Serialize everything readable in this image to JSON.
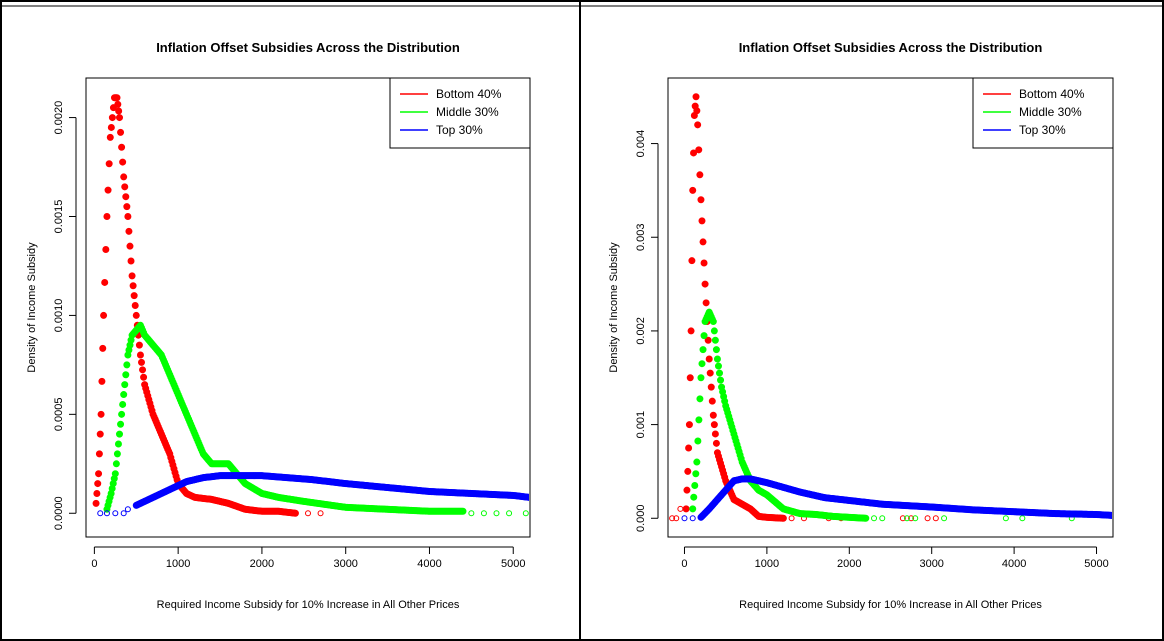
{
  "chart_data": [
    {
      "type": "scatter",
      "title": "Inflation Offset Subsidies Across the Distribution",
      "xlabel": "Required Income Subsidy for 10% Increase in All Other Prices",
      "ylabel": "Density of Income Subsidy",
      "xlim": [
        -100,
        5200
      ],
      "ylim": [
        -0.00012,
        0.0022
      ],
      "xticks": [
        0,
        1000,
        2000,
        3000,
        4000,
        5000
      ],
      "xtick_labels": [
        "0",
        "1000",
        "2000",
        "3000",
        "4000",
        "5000"
      ],
      "yticks": [
        0,
        0.0005,
        0.001,
        0.0015,
        0.002
      ],
      "ytick_labels": [
        "0.0000",
        "0.0005",
        "0.0010",
        "0.0015",
        "0.0020"
      ],
      "grid": false,
      "legend_position": "top-right",
      "series": [
        {
          "name": "Bottom 40%",
          "color": "#ff0000",
          "points": [
            [
              20,
              5e-05
            ],
            [
              50,
              0.0002
            ],
            [
              80,
              0.0005
            ],
            [
              110,
              0.001
            ],
            [
              150,
              0.0015
            ],
            [
              190,
              0.0019
            ],
            [
              240,
              0.0021
            ],
            [
              270,
              0.0021
            ],
            [
              300,
              0.002
            ],
            [
              350,
              0.0017
            ],
            [
              400,
              0.0015
            ],
            [
              450,
              0.0012
            ],
            [
              500,
              0.001
            ],
            [
              550,
              0.0008
            ],
            [
              600,
              0.00065
            ],
            [
              700,
              0.0005
            ],
            [
              800,
              0.0004
            ],
            [
              900,
              0.0003
            ],
            [
              1000,
              0.00015
            ],
            [
              1100,
              0.0001
            ],
            [
              1200,
              8e-05
            ],
            [
              1400,
              7e-05
            ],
            [
              1600,
              5e-05
            ],
            [
              1800,
              2e-05
            ],
            [
              2000,
              1e-05
            ],
            [
              2200,
              1e-05
            ],
            [
              2400,
              0.0
            ]
          ],
          "outliers": [
            [
              2550,
              0.0
            ],
            [
              2700,
              0.0
            ]
          ]
        },
        {
          "name": "Middle 30%",
          "color": "#00ff00",
          "points": [
            [
              150,
              2e-05
            ],
            [
              200,
              0.0001
            ],
            [
              250,
              0.0002
            ],
            [
              300,
              0.0004
            ],
            [
              350,
              0.0006
            ],
            [
              400,
              0.0008
            ],
            [
              450,
              0.0009
            ],
            [
              550,
              0.00095
            ],
            [
              600,
              0.0009
            ],
            [
              700,
              0.00085
            ],
            [
              800,
              0.0008
            ],
            [
              900,
              0.0007
            ],
            [
              1000,
              0.0006
            ],
            [
              1100,
              0.0005
            ],
            [
              1200,
              0.0004
            ],
            [
              1300,
              0.0003
            ],
            [
              1400,
              0.00025
            ],
            [
              1500,
              0.00025
            ],
            [
              1600,
              0.00025
            ],
            [
              1700,
              0.0002
            ],
            [
              1800,
              0.00015
            ],
            [
              2000,
              0.0001
            ],
            [
              2200,
              8e-05
            ],
            [
              2500,
              6e-05
            ],
            [
              3000,
              3e-05
            ],
            [
              3500,
              2e-05
            ],
            [
              4000,
              1e-05
            ],
            [
              4400,
              1e-05
            ]
          ],
          "outliers": [
            [
              4500,
              0.0
            ],
            [
              4650,
              0.0
            ],
            [
              4800,
              0.0
            ],
            [
              4950,
              0.0
            ],
            [
              5150,
              0.0
            ]
          ]
        },
        {
          "name": "Top 30%",
          "color": "#0000ff",
          "points": [
            [
              500,
              4e-05
            ],
            [
              700,
              8e-05
            ],
            [
              900,
              0.00012
            ],
            [
              1100,
              0.00016
            ],
            [
              1300,
              0.00018
            ],
            [
              1500,
              0.00019
            ],
            [
              1700,
              0.00019
            ],
            [
              2000,
              0.00019
            ],
            [
              2300,
              0.00018
            ],
            [
              2600,
              0.00017
            ],
            [
              3000,
              0.00015
            ],
            [
              3500,
              0.00013
            ],
            [
              4000,
              0.00011
            ],
            [
              4500,
              0.0001
            ],
            [
              5000,
              9e-05
            ],
            [
              5200,
              8e-05
            ]
          ],
          "outliers": [
            [
              70,
              0.0
            ],
            [
              150,
              0.0
            ],
            [
              250,
              0.0
            ],
            [
              350,
              0.0
            ],
            [
              400,
              2e-05
            ]
          ]
        }
      ]
    },
    {
      "type": "scatter",
      "title": "Inflation Offset Subsidies Across the Distribution",
      "xlabel": "Required Income Subsidy for 10% Increase in All Other Prices",
      "ylabel": "Density of Income Subsidy",
      "xlim": [
        -200,
        5200
      ],
      "ylim": [
        -0.0002,
        0.0047
      ],
      "xticks": [
        0,
        1000,
        2000,
        3000,
        4000,
        5000
      ],
      "xtick_labels": [
        "0",
        "1000",
        "2000",
        "3000",
        "4000",
        "5000"
      ],
      "yticks": [
        0,
        0.001,
        0.002,
        0.003,
        0.004
      ],
      "ytick_labels": [
        "0.000",
        "0.001",
        "0.002",
        "0.003",
        "0.004"
      ],
      "grid": false,
      "legend_position": "top-right",
      "series": [
        {
          "name": "Bottom 40%",
          "color": "#ff0000",
          "points": [
            [
              20,
              0.0001
            ],
            [
              40,
              0.0005
            ],
            [
              60,
              0.001
            ],
            [
              80,
              0.002
            ],
            [
              100,
              0.0035
            ],
            [
              120,
              0.0043
            ],
            [
              140,
              0.0045
            ],
            [
              160,
              0.0042
            ],
            [
              200,
              0.0034
            ],
            [
              250,
              0.0025
            ],
            [
              300,
              0.0017
            ],
            [
              350,
              0.0011
            ],
            [
              400,
              0.0007
            ],
            [
              500,
              0.0004
            ],
            [
              600,
              0.0002
            ],
            [
              700,
              0.00015
            ],
            [
              800,
              0.0001
            ],
            [
              900,
              2e-05
            ],
            [
              1000,
              1e-05
            ],
            [
              1200,
              0.0
            ]
          ],
          "outliers": [
            [
              -150,
              0.0
            ],
            [
              -100,
              0.0
            ],
            [
              -50,
              0.0001
            ],
            [
              1300,
              0.0
            ],
            [
              1450,
              0.0
            ],
            [
              1750,
              0.0
            ],
            [
              1900,
              0.0
            ],
            [
              2650,
              0.0
            ],
            [
              2750,
              0.0
            ],
            [
              2950,
              0.0
            ],
            [
              3050,
              0.0
            ]
          ]
        },
        {
          "name": "Middle 30%",
          "color": "#00ff00",
          "points": [
            [
              100,
              0.0001
            ],
            [
              150,
              0.0006
            ],
            [
              200,
              0.0015
            ],
            [
              250,
              0.0021
            ],
            [
              300,
              0.0022
            ],
            [
              350,
              0.0021
            ],
            [
              400,
              0.0017
            ],
            [
              450,
              0.0014
            ],
            [
              500,
              0.0012
            ],
            [
              600,
              0.0009
            ],
            [
              700,
              0.0006
            ],
            [
              800,
              0.0004
            ],
            [
              900,
              0.0003
            ],
            [
              1000,
              0.00025
            ],
            [
              1200,
              0.0001
            ],
            [
              1400,
              5e-05
            ],
            [
              1600,
              4e-05
            ],
            [
              1800,
              2e-05
            ],
            [
              2000,
              1e-05
            ],
            [
              2200,
              0.0
            ]
          ],
          "outliers": [
            [
              2300,
              0.0
            ],
            [
              2400,
              0.0
            ],
            [
              2700,
              0.0
            ],
            [
              2800,
              0.0
            ],
            [
              3150,
              0.0
            ],
            [
              3900,
              0.0
            ],
            [
              4100,
              0.0
            ],
            [
              4700,
              0.0
            ]
          ]
        },
        {
          "name": "Top 30%",
          "color": "#0000ff",
          "points": [
            [
              200,
              1e-05
            ],
            [
              300,
              0.0001
            ],
            [
              400,
              0.0002
            ],
            [
              500,
              0.0003
            ],
            [
              600,
              0.0004
            ],
            [
              700,
              0.00042
            ],
            [
              800,
              0.00042
            ],
            [
              1000,
              0.00038
            ],
            [
              1200,
              0.00033
            ],
            [
              1400,
              0.00028
            ],
            [
              1700,
              0.00022
            ],
            [
              2000,
              0.00019
            ],
            [
              2400,
              0.00015
            ],
            [
              3000,
              0.00012
            ],
            [
              3500,
              9e-05
            ],
            [
              4000,
              7e-05
            ],
            [
              4500,
              5e-05
            ],
            [
              5000,
              4e-05
            ],
            [
              5200,
              3e-05
            ]
          ],
          "outliers": [
            [
              0,
              0.0
            ],
            [
              100,
              0.0
            ]
          ]
        }
      ]
    }
  ]
}
